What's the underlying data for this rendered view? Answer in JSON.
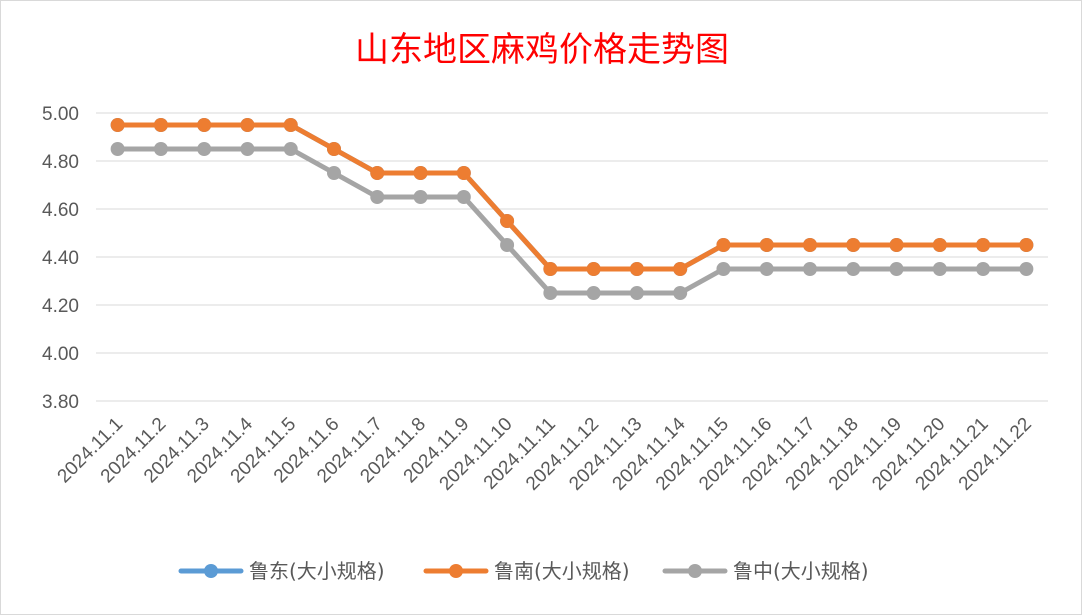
{
  "chart_data": {
    "type": "line",
    "title": "山东地区麻鸡价格走势图",
    "categories": [
      "2024.11.1",
      "2024.11.2",
      "2024.11.3",
      "2024.11.4",
      "2024.11.5",
      "2024.11.6",
      "2024.11.7",
      "2024.11.8",
      "2024.11.9",
      "2024.11.10",
      "2024.11.11",
      "2024.11.12",
      "2024.11.13",
      "2024.11.14",
      "2024.11.15",
      "2024.11.16",
      "2024.11.17",
      "2024.11.18",
      "2024.11.19",
      "2024.11.20",
      "2024.11.21",
      "2024.11.22"
    ],
    "yticks": [
      "3.80",
      "4.00",
      "4.20",
      "4.40",
      "4.60",
      "4.80",
      "5.00"
    ],
    "ylim": [
      3.8,
      5.0
    ],
    "grid": true,
    "legend_position": "bottom",
    "series": [
      {
        "name": "鲁东(大小规格)",
        "color": "#5b9bd5",
        "values": [
          4.95,
          4.95,
          4.95,
          4.95,
          4.95,
          4.85,
          4.75,
          4.75,
          4.75,
          4.55,
          4.35,
          4.35,
          4.35,
          4.35,
          4.45,
          4.45,
          4.45,
          4.45,
          4.45,
          4.45,
          4.45,
          4.45
        ]
      },
      {
        "name": "鲁南(大小规格)",
        "color": "#ed7d31",
        "values": [
          4.95,
          4.95,
          4.95,
          4.95,
          4.95,
          4.85,
          4.75,
          4.75,
          4.75,
          4.55,
          4.35,
          4.35,
          4.35,
          4.35,
          4.45,
          4.45,
          4.45,
          4.45,
          4.45,
          4.45,
          4.45,
          4.45
        ]
      },
      {
        "name": "鲁中(大小规格)",
        "color": "#a5a5a5",
        "values": [
          4.85,
          4.85,
          4.85,
          4.85,
          4.85,
          4.75,
          4.65,
          4.65,
          4.65,
          4.45,
          4.25,
          4.25,
          4.25,
          4.25,
          4.35,
          4.35,
          4.35,
          4.35,
          4.35,
          4.35,
          4.35,
          4.35
        ]
      }
    ]
  }
}
